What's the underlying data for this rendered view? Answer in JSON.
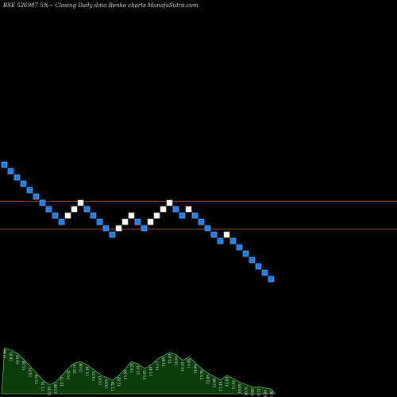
{
  "colors": {
    "background": "#000000",
    "up_brick": "#ffffff",
    "down_brick": "#1e7fe6",
    "down_brick_edge": "#6fb3ff",
    "reference_line": "#b8641c",
    "volume_fill": "#0a3d0a",
    "volume_edge": "#7fd07f"
  },
  "chart_data": {
    "type": "renko",
    "title": "BSE 526987 5%~  Closing Daily data  Renko  charts MunafaSutra.com",
    "xlabel": "",
    "ylabel": "",
    "grid": false,
    "legend": "none",
    "reference_lines": [
      1,
      6
    ],
    "y_range": [
      -2,
      40
    ],
    "brick_direction": [
      "down",
      "down",
      "down",
      "down",
      "down",
      "down",
      "down",
      "down",
      "down",
      "down",
      "up",
      "up",
      "up",
      "down",
      "down",
      "down",
      "down",
      "down",
      "up",
      "up",
      "up",
      "down",
      "down",
      "up",
      "up",
      "up",
      "up",
      "down",
      "down",
      "up",
      "down",
      "down",
      "down",
      "down",
      "down",
      "up",
      "down",
      "down",
      "down",
      "down",
      "down",
      "down",
      "down"
    ],
    "brick_level": [
      40,
      39,
      38,
      37,
      36,
      35,
      34,
      33,
      32,
      31,
      32,
      33,
      34,
      33,
      32,
      31,
      30,
      29,
      30,
      31,
      32,
      31,
      30,
      31,
      32,
      33,
      34,
      33,
      32,
      33,
      32,
      31,
      30,
      29,
      28,
      29,
      28,
      27,
      26,
      25,
      24,
      23,
      22
    ],
    "volume": {
      "values": [
        40,
        38,
        35,
        30,
        24,
        18,
        12,
        8,
        10,
        16,
        22,
        27,
        28,
        25,
        21,
        17,
        14,
        12,
        16,
        22,
        28,
        26,
        22,
        25,
        30,
        33,
        36,
        34,
        29,
        32,
        27,
        22,
        18,
        15,
        12,
        16,
        13,
        10,
        8,
        6,
        6,
        5,
        4
      ],
      "labels": [
        "17.86",
        "16.91",
        "16.10",
        "15.28",
        "14.51",
        "13.79",
        "13.10",
        "12.45",
        "13.08",
        "13.73",
        "14.42",
        "15.14",
        "15.90",
        "15.10",
        "14.35",
        "13.63",
        "12.95",
        "12.30",
        "12.92",
        "13.56",
        "14.24",
        "13.53",
        "12.85",
        "13.49",
        "14.17",
        "14.88",
        "15.62",
        "14.84",
        "14.10",
        "14.80",
        "14.06",
        "13.36",
        "12.69",
        "12.06",
        "11.45",
        "12.03",
        "11.42",
        "10.85",
        "10.31",
        "9.80",
        "9.31",
        "8.84",
        "8.40"
      ]
    }
  }
}
